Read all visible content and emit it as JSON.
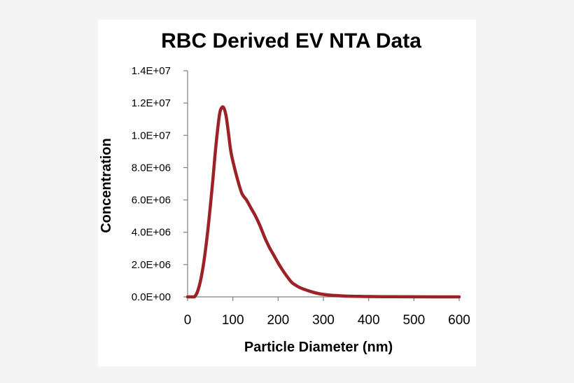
{
  "chart_data": {
    "type": "line",
    "title": "RBC Derived EV NTA Data",
    "xlabel": "Particle Diameter (nm)",
    "ylabel": "Concentration",
    "xlim": [
      0,
      600
    ],
    "ylim": [
      0,
      14000000
    ],
    "x_ticks": [
      0,
      100,
      200,
      300,
      400,
      500,
      600
    ],
    "x_tick_labels": [
      "0",
      "100",
      "200",
      "300",
      "400",
      "500",
      "600"
    ],
    "y_ticks": [
      0,
      2000000,
      4000000,
      6000000,
      8000000,
      10000000,
      12000000,
      14000000
    ],
    "y_tick_labels": [
      "0.0E+00",
      "2.0E+06",
      "4.0E+06",
      "6.0E+06",
      "8.0E+06",
      "1.0E+07",
      "1.2E+07",
      "1.4E+07"
    ],
    "grid": false,
    "legend": "none",
    "line_color": "#9b2226",
    "series": [
      {
        "x": [
          0,
          15,
          25,
          35,
          45,
          55,
          62,
          70,
          75,
          80,
          85,
          90,
          95,
          100,
          110,
          120,
          130,
          140,
          150,
          160,
          170,
          180,
          190,
          200,
          210,
          220,
          230,
          240,
          250,
          270,
          290,
          310,
          330,
          350,
          380,
          400,
          450,
          500,
          550,
          600
        ],
        "y": [
          0,
          0,
          600000,
          2000000,
          4200000,
          7000000,
          9200000,
          11200000,
          11700000,
          11700000,
          11200000,
          10200000,
          9100000,
          8400000,
          7300000,
          6400000,
          6000000,
          5500000,
          5000000,
          4400000,
          3700000,
          3100000,
          2600000,
          2100000,
          1650000,
          1250000,
          900000,
          700000,
          550000,
          350000,
          200000,
          120000,
          80000,
          50000,
          30000,
          20000,
          10000,
          5000,
          2000,
          0
        ]
      }
    ]
  }
}
